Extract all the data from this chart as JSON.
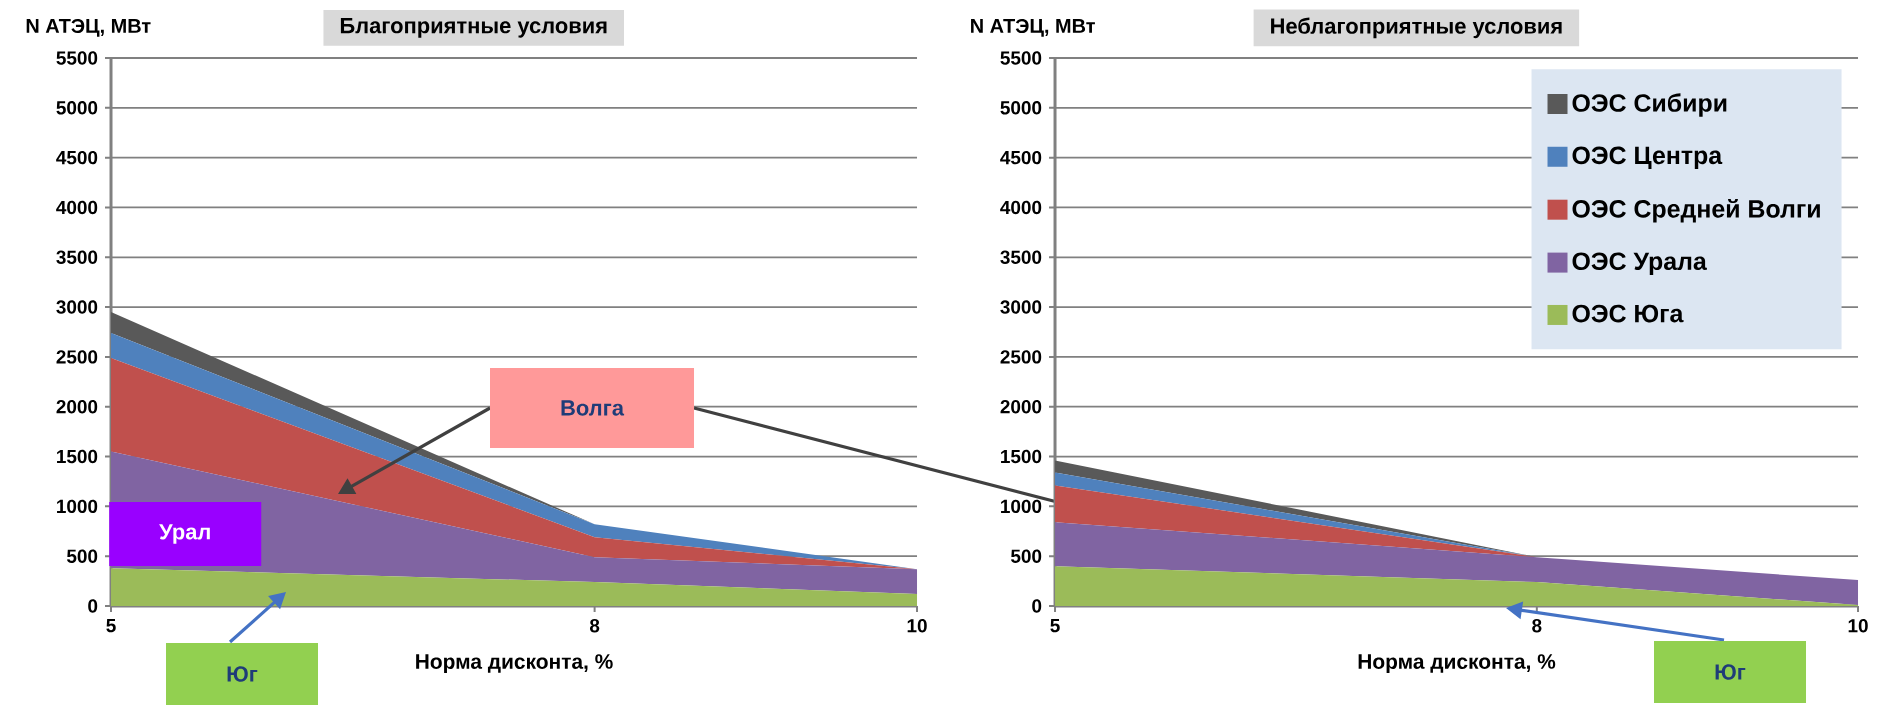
{
  "chart_data": [
    {
      "type": "area",
      "stacked": true,
      "title": "Благоприятные условия",
      "ylabel": "N АТЭЦ, МВт",
      "xlabel": "Норма дисконта, %",
      "x": [
        5,
        8,
        10
      ],
      "xlim": [
        5,
        10
      ],
      "xticks": [
        5,
        8,
        10
      ],
      "ylim": [
        0,
        5500
      ],
      "yticks": [
        0,
        500,
        1000,
        1500,
        2000,
        2500,
        3000,
        3500,
        4000,
        4500,
        5000,
        5500
      ],
      "grid": "y",
      "legend": false,
      "series": [
        {
          "color": "#9bbb59",
          "values": [
            380,
            240,
            120
          ]
        },
        {
          "color": "#8064a2",
          "values": [
            1170,
            250,
            250
          ]
        },
        {
          "color": "#c0504d",
          "values": [
            940,
            200,
            0
          ]
        },
        {
          "color": "#4f81bd",
          "values": [
            250,
            130,
            0
          ]
        },
        {
          "color": "#595959",
          "values": [
            210,
            0,
            0
          ]
        }
      ],
      "annotations": [
        "Волга",
        "Урал",
        "Юг"
      ]
    },
    {
      "type": "area",
      "stacked": true,
      "title": "Неблагоприятные условия",
      "ylabel": "N АТЭЦ, МВт",
      "xlabel": "Норма дисконта, %",
      "x": [
        5,
        8,
        10
      ],
      "xlim": [
        5,
        10
      ],
      "xticks": [
        5,
        8,
        10
      ],
      "ylim": [
        0,
        5500
      ],
      "yticks": [
        0,
        500,
        1000,
        1500,
        2000,
        2500,
        3000,
        3500,
        4000,
        4500,
        5000,
        5500
      ],
      "grid": "y",
      "legend": "top right",
      "series": [
        {
          "name": "ОЭС Юга",
          "color": "#9bbb59",
          "values": [
            400,
            240,
            10
          ]
        },
        {
          "name": "ОЭС Урала",
          "color": "#8064a2",
          "values": [
            440,
            250,
            250
          ]
        },
        {
          "name": "ОЭС Средней Волги",
          "color": "#c0504d",
          "values": [
            370,
            0,
            0
          ]
        },
        {
          "name": "ОЭС Центра",
          "color": "#4f81bd",
          "values": [
            130,
            0,
            0
          ]
        },
        {
          "name": "ОЭС Сибири",
          "color": "#595959",
          "values": [
            120,
            0,
            0
          ]
        }
      ],
      "annotations": [
        "Юг"
      ]
    }
  ]
}
